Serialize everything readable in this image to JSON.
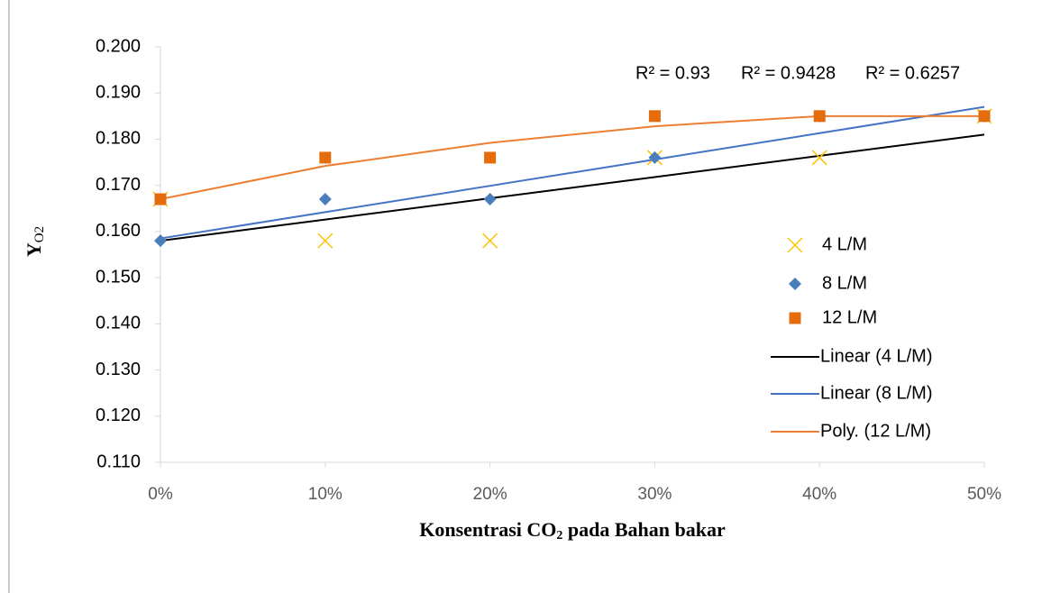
{
  "chart_data": {
    "type": "scatter",
    "x_label": [
      "Konsentrasi CO",
      "2",
      " pada Bahan bakar"
    ],
    "y_label": [
      "Y",
      "O2"
    ],
    "x": [
      0,
      10,
      20,
      30,
      40,
      50
    ],
    "xlim": [
      0,
      50
    ],
    "xticks": [
      {
        "value": 0,
        "label": "0%"
      },
      {
        "value": 10,
        "label": "10%"
      },
      {
        "value": 20,
        "label": "20%"
      },
      {
        "value": 30,
        "label": "30%"
      },
      {
        "value": 40,
        "label": "40%"
      },
      {
        "value": 50,
        "label": "50%"
      }
    ],
    "ylim": [
      0.11,
      0.2
    ],
    "yticks": [
      {
        "value": 0.11,
        "label": "0.110"
      },
      {
        "value": 0.12,
        "label": "0.120"
      },
      {
        "value": 0.13,
        "label": "0.130"
      },
      {
        "value": 0.14,
        "label": "0.140"
      },
      {
        "value": 0.15,
        "label": "0.150"
      },
      {
        "value": 0.16,
        "label": "0.160"
      },
      {
        "value": 0.17,
        "label": "0.170"
      },
      {
        "value": 0.18,
        "label": "0.180"
      },
      {
        "value": 0.19,
        "label": "0.190"
      },
      {
        "value": 0.2,
        "label": "0.200"
      }
    ],
    "series": [
      {
        "name": "4 L/M",
        "color": "#ffc000",
        "marker": "x",
        "values": [
          0.167,
          0.158,
          0.158,
          0.176,
          0.176,
          0.185
        ]
      },
      {
        "name": "8 L/M",
        "color": "#4a7ebb",
        "marker": "diamond",
        "values": [
          0.158,
          0.167,
          0.167,
          0.176,
          0.185,
          0.185
        ]
      },
      {
        "name": "12 L/M",
        "color": "#e46c0a",
        "marker": "square",
        "values": [
          0.167,
          0.176,
          0.176,
          0.185,
          0.185,
          0.185
        ]
      },
      {
        "name": "Linear (4 L/M)",
        "color": "#000000",
        "marker": "line",
        "values": [
          0.158,
          0.1626,
          0.1672,
          0.1718,
          0.1764,
          0.181
        ]
      },
      {
        "name": "Linear (8 L/M)",
        "color": "#4472c4",
        "marker": "line",
        "values": [
          0.1585,
          0.1642,
          0.1699,
          0.1756,
          0.1813,
          0.187
        ]
      },
      {
        "name": "Poly. (12 L/M)",
        "color": "#ed7d31",
        "marker": "line",
        "values": [
          0.167,
          0.1742,
          0.1792,
          0.1828,
          0.185,
          0.185
        ]
      }
    ],
    "annotations": [
      {
        "text": "R² = 0.93",
        "color": "#ed7d31"
      },
      {
        "text": "R² = 0.9428",
        "color": "#4472c4"
      },
      {
        "text": "R² = 0.6257",
        "color": "#000000"
      }
    ]
  }
}
